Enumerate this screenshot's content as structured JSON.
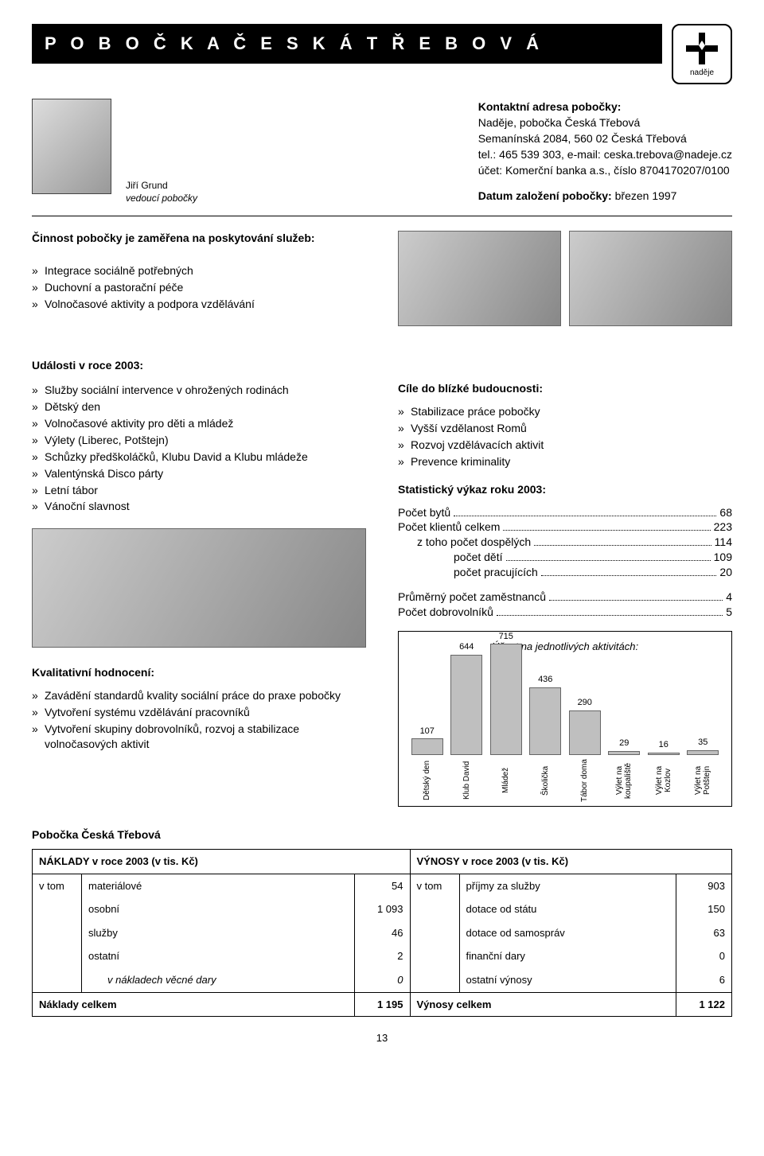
{
  "header_title": "P O B O Č K A   Č E S K Á   T Ř E B O V Á",
  "logo_text": "naděje",
  "person": {
    "name": "Jiří Grund",
    "role": "vedoucí pobočky"
  },
  "contact": {
    "heading": "Kontaktní adresa pobočky:",
    "line1": "Naděje, pobočka Česká Třebová",
    "line2": "Semanínská 2084, 560 02  Česká Třebová",
    "line3": "tel.: 465 539 303, e-mail: ceska.trebova@nadeje.cz",
    "line4": "účet: Komerční banka a.s., číslo 8704170207/0100",
    "founded_label": "Datum založení pobočky: ",
    "founded_value": "březen 1997"
  },
  "activity_heading": "Činnost pobočky je zaměřena na  poskytování služeb:",
  "activities": [
    "Integrace sociálně potřebných",
    "Duchovní a pastorační péče",
    "Volnočasové aktivity a podpora vzdělávání"
  ],
  "events_heading": "Události v roce 2003:",
  "events": [
    "Služby sociální intervence v ohrožených rodinách",
    "Dětský den",
    "Volnočasové aktivity pro děti a mládež",
    "Výlety (Liberec, Potštejn)",
    "Schůzky předškoláčků, Klubu David a Klubu mládeže",
    "Valentýnská Disco párty",
    "Letní tábor",
    "Vánoční slavnost"
  ],
  "goals_heading": "Cíle do blízké budoucnosti:",
  "goals": [
    "Stabilizace práce pobočky",
    "Vyšší vzdělanost Romů",
    "Rozvoj vzdělávacích aktivit",
    "Prevence kriminality"
  ],
  "stats_heading": "Statistický výkaz roku 2003:",
  "stats": {
    "r1_label": "Počet bytů",
    "r1_val": "68",
    "r2_label": "Počet klientů celkem",
    "r2_val": "223",
    "r3_label": "z toho počet dospělých",
    "r3_val": "114",
    "r4_label": "počet dětí",
    "r4_val": "109",
    "r5_label": "počet pracujících",
    "r5_val": "20",
    "r6_label": "Průměrný počet zaměstnanců",
    "r6_val": "4",
    "r7_label": "Počet dobrovolníků",
    "r7_val": "5"
  },
  "qual_heading": "Kvalitativní hodnocení:",
  "qual": [
    "Zavádění standardů kvality sociální práce do praxe pobočky",
    "Vytvoření systému vzdělávání pracovníků",
    "Vytvoření skupiny dobrovolníků, rozvoj a stabilizace volnočasových aktivit"
  ],
  "chart": {
    "title": "Účast na jednotlivých aktivitách:",
    "max": 715,
    "bar_color": "#bfbfbf",
    "bar_border": "#666666",
    "bars": [
      {
        "label": "Dětský den",
        "value": 107
      },
      {
        "label": "Klub David",
        "value": 644
      },
      {
        "label": "Mládež",
        "value": 715
      },
      {
        "label": "Školička",
        "value": 436
      },
      {
        "label": "Tábor doma",
        "value": 290
      },
      {
        "label": "Výlet na koupaliště",
        "value": 29
      },
      {
        "label": "Výlet na Kozlov",
        "value": 16
      },
      {
        "label": "Výlet na Potštejn",
        "value": 35
      }
    ]
  },
  "fin_heading": "Pobočka Česká Třebová",
  "fin": {
    "left_title": "NÁKLADY v roce  2003 (v tis. Kč)",
    "right_title": "VÝNOSY v roce 2003 (v tis. Kč)",
    "vtom": "v tom",
    "left_rows": [
      {
        "label": "materiálové",
        "val": "54"
      },
      {
        "label": "osobní",
        "val": "1 093"
      },
      {
        "label": "služby",
        "val": "46"
      },
      {
        "label": "ostatní",
        "val": "2"
      },
      {
        "label": "v nákladech věcné dary",
        "val": "0",
        "italic": true,
        "indent": true
      }
    ],
    "left_total_label": "Náklady celkem",
    "left_total_val": "1 195",
    "right_rows": [
      {
        "label": "příjmy za služby",
        "val": "903"
      },
      {
        "label": "dotace od státu",
        "val": "150"
      },
      {
        "label": "dotace od samospráv",
        "val": "63"
      },
      {
        "label": "finanční dary",
        "val": "0"
      },
      {
        "label": "ostatní výnosy",
        "val": "6"
      }
    ],
    "right_total_label": "Výnosy celkem",
    "right_total_val": "1 122"
  },
  "page_number": "13"
}
